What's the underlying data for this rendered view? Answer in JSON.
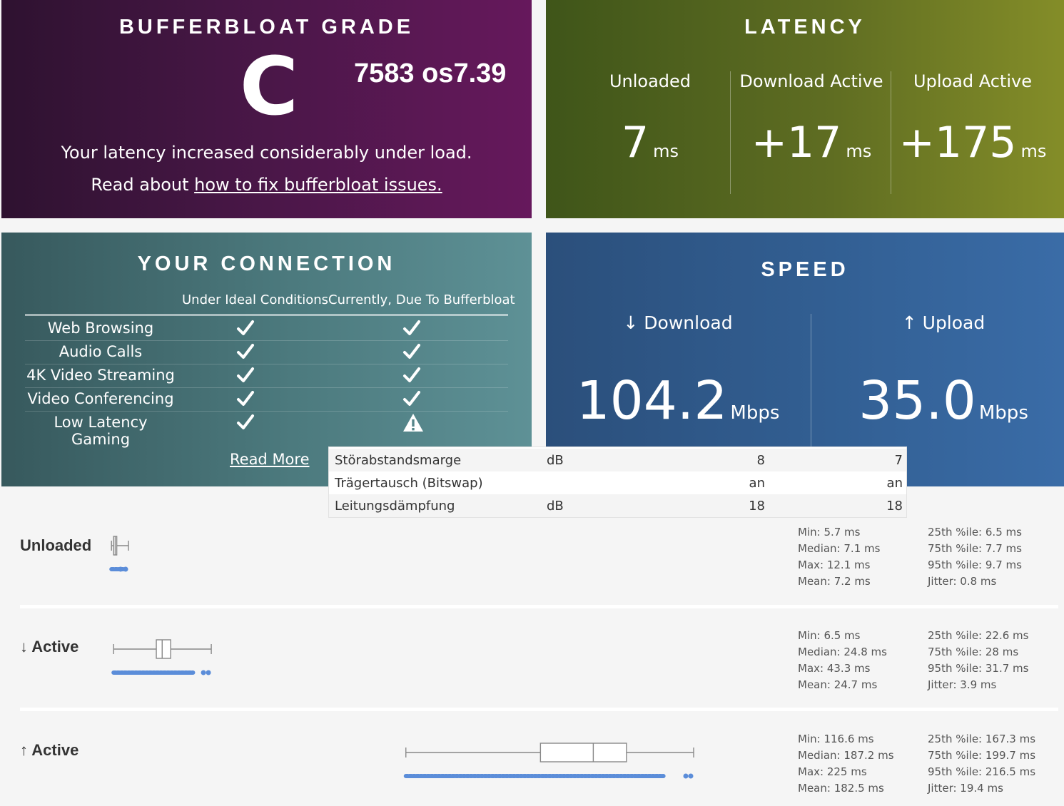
{
  "grade": {
    "title": "BUFFERBLOAT GRADE",
    "letter": "C",
    "code": "7583 os7.39",
    "message": "Your latency increased considerably under load.",
    "fix_prefix": "Read about ",
    "fix_link": "how to fix bufferbloat issues."
  },
  "latency": {
    "title": "LATENCY",
    "columns": [
      {
        "label": "Unloaded",
        "value": "7",
        "unit": "ms"
      },
      {
        "label": "Download Active",
        "value": "+17",
        "unit": "ms"
      },
      {
        "label": "Upload Active",
        "value": "+175",
        "unit": "ms"
      }
    ]
  },
  "connection": {
    "title": "YOUR CONNECTION",
    "col_ideal": "Under Ideal Conditions",
    "col_current": "Currently, Due To Bufferbloat",
    "rows": [
      {
        "name": "Web Browsing",
        "ideal": "check-icon",
        "current": "check-icon"
      },
      {
        "name": "Audio Calls",
        "ideal": "check-icon",
        "current": "check-icon"
      },
      {
        "name": "4K Video Streaming",
        "ideal": "check-icon",
        "current": "check-icon"
      },
      {
        "name": "Video Conferencing",
        "ideal": "check-icon",
        "current": "check-icon"
      },
      {
        "name": "Low Latency Gaming",
        "ideal": "check-icon",
        "current": "warning-icon"
      }
    ],
    "read_more": "Read More"
  },
  "speed": {
    "title": "SPEED",
    "download_label": "↓ Download",
    "download_value": "104.2",
    "download_unit": "Mbps",
    "upload_label": "↑ Upload",
    "upload_value": "35.0",
    "upload_unit": "Mbps"
  },
  "dsl_table": {
    "rows": [
      {
        "name": "Störabstandsmarge",
        "unit": "dB",
        "v1": "8",
        "v2": "7"
      },
      {
        "name": "Trägertausch (Bitswap)",
        "unit": "",
        "v1": "an",
        "v2": "an"
      },
      {
        "name": "Leitungsdämpfung",
        "unit": "dB",
        "v1": "18",
        "v2": "18"
      }
    ]
  },
  "latency_details": {
    "unloaded": {
      "label": "Unloaded",
      "box_ms": {
        "min": 5.7,
        "q1": 6.5,
        "median": 7.1,
        "q3": 7.7,
        "max": 12.1
      },
      "stats_left": [
        "Min: 5.7 ms",
        "Median: 7.1 ms",
        "Max: 12.1 ms",
        "Mean: 7.2 ms"
      ],
      "stats_right": [
        "25th %ile: 6.5 ms",
        "75th %ile: 7.7 ms",
        "95th %ile: 9.7 ms",
        "Jitter: 0.8 ms"
      ]
    },
    "download_active": {
      "label": "↓ Active",
      "box_ms": {
        "min": 6.5,
        "q1": 22.6,
        "median": 24.8,
        "q3": 28,
        "max": 43.3
      },
      "stats_left": [
        "Min: 6.5 ms",
        "Median: 24.8 ms",
        "Max: 43.3 ms",
        "Mean: 24.7 ms"
      ],
      "stats_right": [
        "25th %ile: 22.6 ms",
        "75th %ile: 28 ms",
        "95th %ile: 31.7 ms",
        "Jitter: 3.9 ms"
      ]
    },
    "upload_active": {
      "label": "↑ Active",
      "box_ms": {
        "min": 116.6,
        "q1": 167.3,
        "median": 187.2,
        "q3": 199.7,
        "max": 225
      },
      "stats_left": [
        "Min: 116.6 ms",
        "Median: 187.2 ms",
        "Max: 225 ms",
        "Mean: 182.5 ms"
      ],
      "stats_right": [
        "25th %ile: 167.3 ms",
        "75th %ile: 199.7 ms",
        "95th %ile: 216.5 ms",
        "Jitter: 19.4 ms"
      ]
    }
  },
  "colors": {
    "grade_bg": "#4a1748",
    "latency_bg": "#5f6d22",
    "connection_bg": "#4c7a7e",
    "speed_bg": "#325f93",
    "sample_dots": "#5b8dd9"
  }
}
